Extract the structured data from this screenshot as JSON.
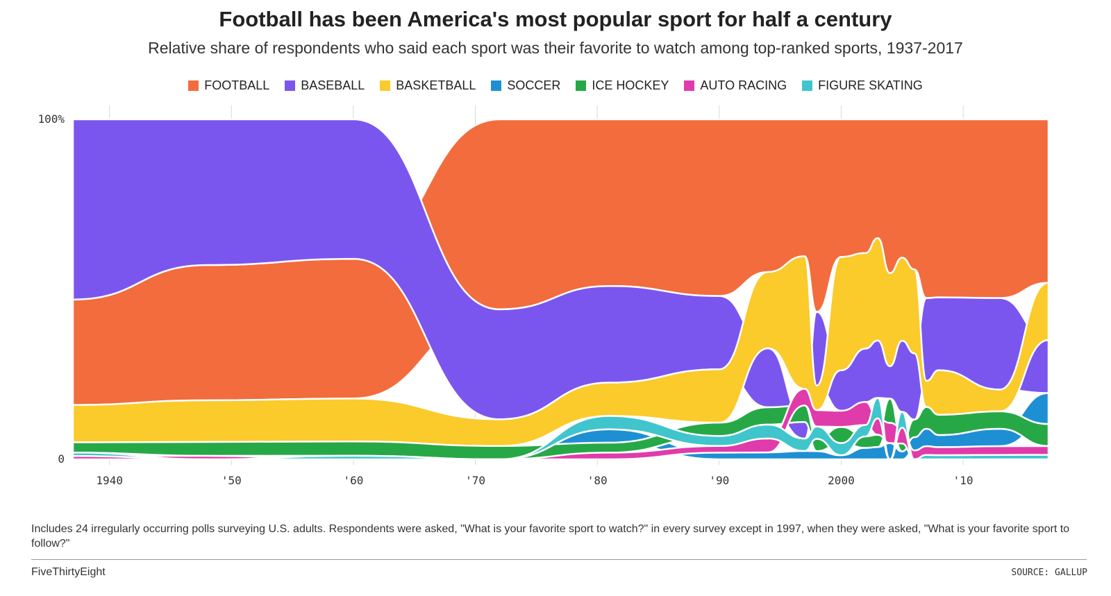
{
  "title": "Football has been America's most popular sport for half a century",
  "subtitle": "Relative share of respondents who said each sport was their favorite to watch among top-ranked sports, 1937-2017",
  "note": "Includes 24 irregularly occurring polls surveying U.S. adults. Respondents were asked, \"What is your favorite sport to watch?\" in every survey except in 1997, when they were asked, \"What is your favorite sport to follow?\"",
  "brand": "FiveThirtyEight",
  "source": "SOURCE: GALLUP",
  "chart_data": {
    "type": "area",
    "stacked": "streamgraph-ranked",
    "xlim": [
      1937,
      2017
    ],
    "ylim": [
      0,
      100
    ],
    "yticks": [
      {
        "value": 0,
        "label": "0"
      },
      {
        "value": 100,
        "label": "100%"
      }
    ],
    "xticks": [
      {
        "value": 1940,
        "label": "1940"
      },
      {
        "value": 1950,
        "label": "'50"
      },
      {
        "value": 1960,
        "label": "'60"
      },
      {
        "value": 1970,
        "label": "'70"
      },
      {
        "value": 1980,
        "label": "'80"
      },
      {
        "value": 1990,
        "label": "'90"
      },
      {
        "value": 2000,
        "label": "2000"
      },
      {
        "value": 2010,
        "label": "'10"
      }
    ],
    "legend_position": "top-center",
    "x": [
      1937,
      1948,
      1960,
      1972,
      1981,
      1990,
      1994,
      1997,
      1998,
      2000,
      2002,
      2003,
      2004,
      2005,
      2006,
      2007,
      2008,
      2013,
      2017
    ],
    "series": [
      {
        "name": "FOOTBALL",
        "color": "#f26c3d",
        "values": [
          31,
          39,
          39,
          57,
          50,
          53,
          44,
          33,
          47,
          34,
          35,
          29,
          38,
          35,
          34,
          41,
          44,
          41,
          37
        ]
      },
      {
        "name": "BASEBALL",
        "color": "#7b56ee",
        "values": [
          53,
          42,
          39,
          33,
          29,
          22,
          17,
          4,
          18,
          10,
          14,
          14,
          8,
          18,
          15,
          19,
          18,
          21,
          12
        ]
      },
      {
        "name": "BASKETBALL",
        "color": "#fbca2b",
        "values": [
          11,
          12,
          12,
          8,
          10,
          16,
          22,
          32,
          6,
          28,
          25,
          25,
          23,
          21,
          19,
          6,
          11,
          5,
          13
        ]
      },
      {
        "name": "SOCCER",
        "color": "#1f8fd3",
        "values": [
          0,
          0,
          0,
          0,
          4,
          2,
          2,
          2,
          2,
          1,
          3,
          3,
          4,
          2,
          3,
          4,
          3,
          4,
          7
        ]
      },
      {
        "name": "ICE HOCKEY",
        "color": "#27a847",
        "values": [
          3,
          4,
          4,
          4,
          3,
          4,
          5,
          4,
          3,
          4,
          3,
          3,
          6,
          2,
          4,
          5,
          5,
          4,
          5
        ]
      },
      {
        "name": "AUTO RACING",
        "color": "#e03bab",
        "values": [
          1,
          1,
          0,
          0,
          2,
          2,
          4,
          4,
          4,
          4,
          6,
          4,
          5,
          4,
          2,
          2,
          2,
          2,
          2
        ]
      },
      {
        "name": "FIGURE SKATING",
        "color": "#40c5cc",
        "values": [
          1,
          0,
          1,
          0,
          4,
          3,
          4,
          3,
          3,
          3,
          3,
          5,
          0,
          4,
          0,
          1,
          1,
          1,
          1
        ]
      }
    ]
  }
}
